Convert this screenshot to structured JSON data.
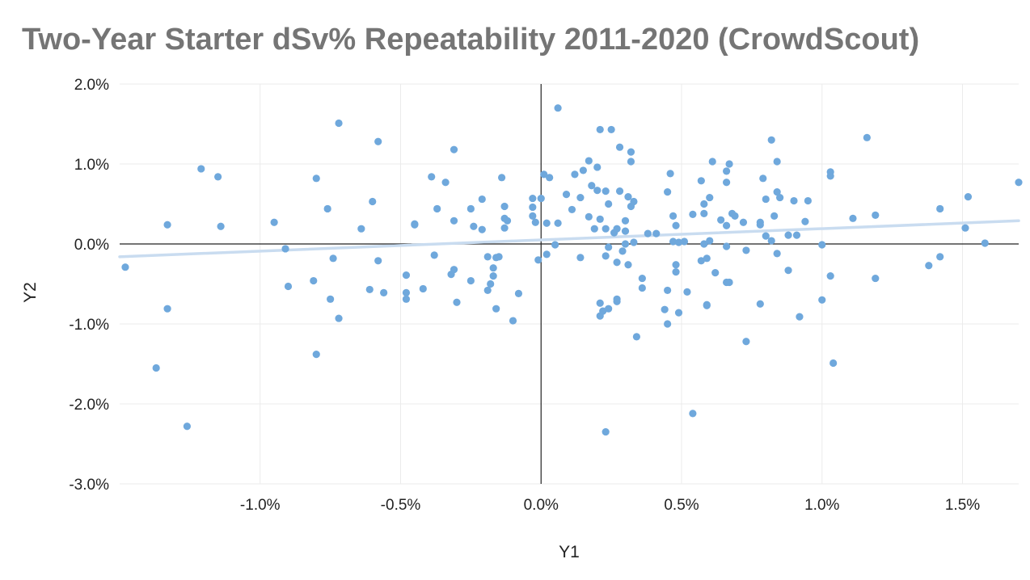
{
  "chart_data": {
    "type": "scatter",
    "title": "Two-Year Starter dSv% Repeatability 2011-2020  (CrowdScout)",
    "xlabel": "Y1",
    "ylabel": "Y2",
    "xlim": [
      -1.5,
      1.7
    ],
    "ylim": [
      -3.0,
      2.0
    ],
    "x_ticks": [
      -1.0,
      -0.5,
      0.0,
      0.5,
      1.0,
      1.5
    ],
    "x_tick_labels": [
      "-1.0%",
      "-0.5%",
      "0.0%",
      "0.5%",
      "1.0%",
      "1.5%"
    ],
    "y_ticks": [
      2.0,
      1.0,
      0.0,
      -1.0,
      -2.0,
      -3.0
    ],
    "y_tick_labels": [
      "2.0%",
      "1.0%",
      "0.0%",
      "-1.0%",
      "-2.0%",
      "-3.0%"
    ],
    "grid": true,
    "point_color": "#6fa8dc",
    "trendline_color": "#c9dcf0",
    "trendline": [
      [
        -1.5,
        -0.16
      ],
      [
        1.7,
        0.29
      ]
    ],
    "points": [
      [
        -1.48,
        -0.29
      ],
      [
        -1.37,
        -1.55
      ],
      [
        -1.33,
        0.24
      ],
      [
        -1.33,
        -0.81
      ],
      [
        -1.26,
        -2.28
      ],
      [
        -1.21,
        0.94
      ],
      [
        -1.15,
        0.84
      ],
      [
        -1.14,
        0.22
      ],
      [
        -0.95,
        0.27
      ],
      [
        -0.91,
        -0.06
      ],
      [
        -0.9,
        -0.53
      ],
      [
        -0.81,
        -0.46
      ],
      [
        -0.8,
        -1.38
      ],
      [
        -0.8,
        0.82
      ],
      [
        -0.76,
        0.44
      ],
      [
        -0.75,
        -0.69
      ],
      [
        -0.74,
        -0.18
      ],
      [
        -0.72,
        1.51
      ],
      [
        -0.72,
        -0.93
      ],
      [
        -0.64,
        0.19
      ],
      [
        -0.61,
        -0.57
      ],
      [
        -0.6,
        0.53
      ],
      [
        -0.58,
        1.28
      ],
      [
        -0.58,
        -0.21
      ],
      [
        -0.56,
        -0.61
      ],
      [
        -0.48,
        -0.39
      ],
      [
        -0.48,
        -0.69
      ],
      [
        -0.48,
        -0.61
      ],
      [
        -0.45,
        0.24
      ],
      [
        -0.45,
        0.25
      ],
      [
        -0.42,
        -0.56
      ],
      [
        -0.39,
        0.84
      ],
      [
        -0.38,
        -0.14
      ],
      [
        -0.37,
        0.44
      ],
      [
        -0.34,
        0.77
      ],
      [
        -0.32,
        -0.38
      ],
      [
        -0.31,
        -0.32
      ],
      [
        -0.31,
        0.29
      ],
      [
        -0.31,
        1.18
      ],
      [
        -0.3,
        -0.73
      ],
      [
        -0.25,
        0.44
      ],
      [
        -0.25,
        -0.46
      ],
      [
        -0.24,
        0.22
      ],
      [
        -0.21,
        0.56
      ],
      [
        -0.21,
        0.18
      ],
      [
        -0.19,
        -0.58
      ],
      [
        -0.19,
        -0.16
      ],
      [
        -0.18,
        -0.5
      ],
      [
        -0.17,
        -0.4
      ],
      [
        -0.17,
        -0.3
      ],
      [
        -0.16,
        -0.17
      ],
      [
        -0.16,
        -0.81
      ],
      [
        -0.15,
        -0.16
      ],
      [
        -0.14,
        0.83
      ],
      [
        -0.13,
        0.47
      ],
      [
        -0.13,
        0.32
      ],
      [
        -0.13,
        0.2
      ],
      [
        -0.12,
        0.29
      ],
      [
        -0.1,
        -0.96
      ],
      [
        -0.08,
        -0.62
      ],
      [
        -0.03,
        0.57
      ],
      [
        -0.03,
        0.46
      ],
      [
        -0.03,
        0.35
      ],
      [
        -0.02,
        0.27
      ],
      [
        -0.01,
        -0.2
      ],
      [
        0.0,
        0.57
      ],
      [
        0.01,
        0.87
      ],
      [
        0.02,
        0.26
      ],
      [
        0.02,
        -0.13
      ],
      [
        0.03,
        0.83
      ],
      [
        0.05,
        -0.01
      ],
      [
        0.06,
        1.7
      ],
      [
        0.06,
        0.26
      ],
      [
        0.09,
        0.62
      ],
      [
        0.11,
        0.43
      ],
      [
        0.12,
        0.87
      ],
      [
        0.14,
        0.58
      ],
      [
        0.14,
        -0.17
      ],
      [
        0.15,
        0.92
      ],
      [
        0.17,
        1.04
      ],
      [
        0.17,
        0.34
      ],
      [
        0.18,
        0.73
      ],
      [
        0.19,
        0.19
      ],
      [
        0.2,
        0.67
      ],
      [
        0.2,
        0.96
      ],
      [
        0.21,
        0.31
      ],
      [
        0.21,
        1.43
      ],
      [
        0.21,
        -0.9
      ],
      [
        0.21,
        -0.74
      ],
      [
        0.22,
        -0.84
      ],
      [
        0.23,
        0.19
      ],
      [
        0.23,
        0.66
      ],
      [
        0.23,
        -0.15
      ],
      [
        0.23,
        -2.35
      ],
      [
        0.24,
        -0.04
      ],
      [
        0.24,
        -0.81
      ],
      [
        0.24,
        0.5
      ],
      [
        0.25,
        1.43
      ],
      [
        0.26,
        0.14
      ],
      [
        0.27,
        0.19
      ],
      [
        0.27,
        -0.72
      ],
      [
        0.27,
        -0.69
      ],
      [
        0.27,
        -0.23
      ],
      [
        0.28,
        1.21
      ],
      [
        0.28,
        0.66
      ],
      [
        0.29,
        -0.09
      ],
      [
        0.3,
        0.16
      ],
      [
        0.3,
        0.29
      ],
      [
        0.3,
        0.0
      ],
      [
        0.31,
        0.59
      ],
      [
        0.31,
        -0.26
      ],
      [
        0.32,
        0.47
      ],
      [
        0.32,
        1.15
      ],
      [
        0.32,
        1.03
      ],
      [
        0.33,
        0.53
      ],
      [
        0.33,
        0.02
      ],
      [
        0.34,
        -1.16
      ],
      [
        0.36,
        -0.43
      ],
      [
        0.36,
        -0.55
      ],
      [
        0.38,
        0.13
      ],
      [
        0.41,
        0.13
      ],
      [
        0.44,
        -0.82
      ],
      [
        0.45,
        -1.0
      ],
      [
        0.45,
        0.65
      ],
      [
        0.45,
        -0.58
      ],
      [
        0.46,
        0.88
      ],
      [
        0.47,
        0.35
      ],
      [
        0.47,
        0.03
      ],
      [
        0.48,
        -0.26
      ],
      [
        0.48,
        -0.35
      ],
      [
        0.48,
        0.23
      ],
      [
        0.49,
        0.02
      ],
      [
        0.49,
        -0.86
      ],
      [
        0.51,
        0.03
      ],
      [
        0.52,
        -0.6
      ],
      [
        0.54,
        0.37
      ],
      [
        0.54,
        -2.12
      ],
      [
        0.57,
        0.79
      ],
      [
        0.57,
        -0.21
      ],
      [
        0.58,
        0.5
      ],
      [
        0.58,
        0.38
      ],
      [
        0.58,
        0.0
      ],
      [
        0.59,
        -0.76
      ],
      [
        0.59,
        -0.77
      ],
      [
        0.59,
        -0.18
      ],
      [
        0.6,
        0.58
      ],
      [
        0.6,
        0.04
      ],
      [
        0.61,
        1.03
      ],
      [
        0.62,
        -0.36
      ],
      [
        0.64,
        0.3
      ],
      [
        0.66,
        0.23
      ],
      [
        0.66,
        0.91
      ],
      [
        0.66,
        0.77
      ],
      [
        0.66,
        -0.03
      ],
      [
        0.66,
        -0.48
      ],
      [
        0.67,
        -0.48
      ],
      [
        0.67,
        1.0
      ],
      [
        0.68,
        0.38
      ],
      [
        0.69,
        0.35
      ],
      [
        0.72,
        0.27
      ],
      [
        0.73,
        -0.08
      ],
      [
        0.73,
        -1.22
      ],
      [
        0.78,
        0.27
      ],
      [
        0.78,
        0.24
      ],
      [
        0.78,
        -0.75
      ],
      [
        0.79,
        0.82
      ],
      [
        0.8,
        0.1
      ],
      [
        0.8,
        0.56
      ],
      [
        0.82,
        1.3
      ],
      [
        0.82,
        0.04
      ],
      [
        0.83,
        0.35
      ],
      [
        0.84,
        0.65
      ],
      [
        0.84,
        -0.12
      ],
      [
        0.84,
        1.03
      ],
      [
        0.85,
        0.58
      ],
      [
        0.88,
        0.11
      ],
      [
        0.88,
        -0.33
      ],
      [
        0.9,
        0.54
      ],
      [
        0.91,
        0.11
      ],
      [
        0.92,
        -0.91
      ],
      [
        0.94,
        0.28
      ],
      [
        0.95,
        0.54
      ],
      [
        1.0,
        -0.7
      ],
      [
        1.0,
        -0.01
      ],
      [
        1.03,
        0.9
      ],
      [
        1.03,
        0.85
      ],
      [
        1.03,
        -0.4
      ],
      [
        1.04,
        -1.49
      ],
      [
        1.11,
        0.32
      ],
      [
        1.16,
        1.33
      ],
      [
        1.19,
        0.36
      ],
      [
        1.19,
        -0.43
      ],
      [
        1.38,
        -0.27
      ],
      [
        1.42,
        0.44
      ],
      [
        1.42,
        -0.16
      ],
      [
        1.51,
        0.2
      ],
      [
        1.52,
        0.59
      ],
      [
        1.58,
        0.01
      ],
      [
        1.7,
        0.77
      ]
    ]
  }
}
